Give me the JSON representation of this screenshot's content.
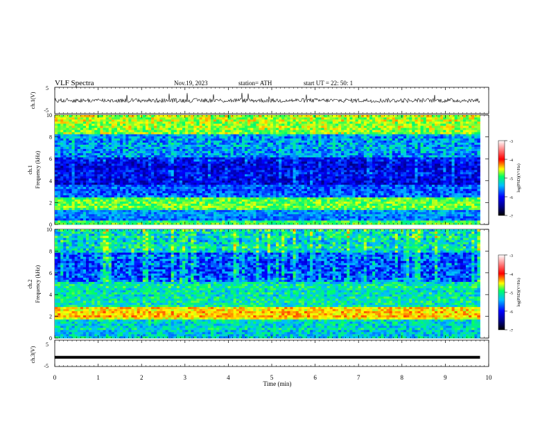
{
  "header": {
    "title": "VLF  Spectra",
    "date": "Nov.19, 2023",
    "station": "station= ATH",
    "start_ut": "start  UT  =    22: 50: 1"
  },
  "chart_data": [
    {
      "type": "line",
      "panel": "ch1-waveform",
      "ylabel": "ch.1(V)",
      "ylim": [
        -5,
        5
      ],
      "ytick_labels": [
        "5",
        "-5"
      ]
    },
    {
      "type": "heatmap",
      "panel": "ch1-spectrogram",
      "ylabel_top": "ch.1",
      "ylabel": "Frequency  (kHz)",
      "ylim": [
        0,
        10
      ],
      "ytick_labels": [
        "0",
        "2",
        "4",
        "6",
        "8",
        "10"
      ],
      "xlim": [
        0,
        10
      ],
      "data_extent_min": 9.8,
      "colorbar": {
        "label": "log(PSD)(V²/Hz)",
        "range": [
          -7,
          -3
        ],
        "tick_labels": [
          "-3",
          "-4",
          "-5",
          "-6",
          "-7"
        ]
      }
    },
    {
      "type": "heatmap",
      "panel": "ch2-spectrogram",
      "ylabel_top": "ch.2",
      "ylabel": "Frequency  (kHz)",
      "ylim": [
        0,
        10
      ],
      "ytick_labels": [
        "0",
        "2",
        "4",
        "6",
        "8",
        "10"
      ],
      "xlim": [
        0,
        10
      ],
      "data_extent_min": 9.8,
      "colorbar": {
        "label": "log(PSD)(V²/Hz)",
        "range": [
          -7,
          -3
        ],
        "tick_labels": [
          "-3",
          "-4",
          "-5",
          "-6",
          "-7"
        ]
      }
    },
    {
      "type": "line",
      "panel": "ch3-waveform",
      "ylabel": "ch.3(V)",
      "ylim": [
        -5,
        5
      ],
      "ytick_labels": [
        "5",
        "-5"
      ],
      "constant_level_v": -1.5
    }
  ],
  "x_axis": {
    "label": "Time  (min)",
    "range": [
      0,
      10
    ],
    "tick_labels": [
      "0",
      "1",
      "2",
      "3",
      "4",
      "5",
      "6",
      "7",
      "8",
      "9",
      "10"
    ]
  },
  "colors": {
    "axis": "#000000",
    "waveform": "#000000",
    "colormap": [
      "#000000",
      "#00008b",
      "#0000ff",
      "#00bfff",
      "#00ff66",
      "#ffff00",
      "#ff0000",
      "#ffffff"
    ]
  }
}
